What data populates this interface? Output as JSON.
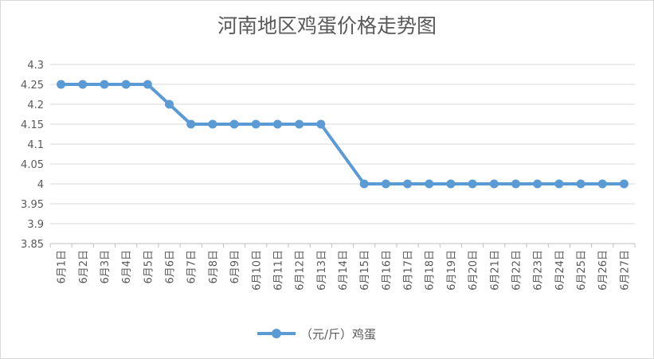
{
  "chart_data": {
    "type": "line",
    "title": "河南地区鸡蛋价格走势图",
    "categories": [
      "6月1日",
      "6月2日",
      "6月3日",
      "6月4日",
      "6月5日",
      "6月6日",
      "6月7日",
      "6月8日",
      "6月9日",
      "6月10日",
      "6月11日",
      "6月12日",
      "6月13日",
      "6月14日",
      "6月15日",
      "6月16日",
      "6月17日",
      "6月18日",
      "6月19日",
      "6月20日",
      "6月21日",
      "6月22日",
      "6月23日",
      "6月24日",
      "6月25日",
      "6月26日",
      "6月27日"
    ],
    "series": [
      {
        "name": "（元/斤）鸡蛋",
        "color": "#5B9BD5",
        "values": [
          4.25,
          4.25,
          4.25,
          4.25,
          4.25,
          4.2,
          4.15,
          4.15,
          4.15,
          4.15,
          4.15,
          4.15,
          4.15,
          null,
          4.0,
          4.0,
          4.0,
          4.0,
          4.0,
          4.0,
          4.0,
          4.0,
          4.0,
          4.0,
          4.0,
          4.0,
          4.0
        ]
      }
    ],
    "yticks": [
      "4.3",
      "4.25",
      "4.2",
      "4.15",
      "4.1",
      "4.05",
      "4",
      "3.95",
      "3.9",
      "3.85"
    ],
    "ylim": [
      3.85,
      4.3
    ],
    "grid": true,
    "legend": "bottom"
  }
}
